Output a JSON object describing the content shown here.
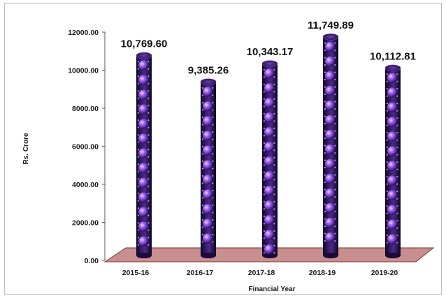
{
  "chart_data": {
    "type": "bar",
    "title": "",
    "xlabel": "Financial Year",
    "ylabel": "Rs. Crore",
    "categories": [
      "2015-16",
      "2016-17",
      "2017-18",
      "2018-19",
      "2019-20"
    ],
    "values": [
      10769.6,
      9385.26,
      10343.17,
      11749.89,
      10112.81
    ],
    "data_labels": [
      "10,769.60",
      "9,385.26",
      "10,343.17",
      "11,749.89",
      "10,112.81"
    ],
    "ylim": [
      0,
      12000
    ],
    "yticks": [
      "0.00",
      "2000.00",
      "4000.00",
      "6000.00",
      "8000.00",
      "10000.00",
      "12000.00"
    ],
    "grid": false,
    "legend": "none",
    "colors": {
      "bar_dark": "#1a0b38",
      "bar_mid": "#3a1e6e",
      "sphere": "#9b5cf0",
      "sphere_highlight": "#e6d0ff",
      "floor": "#c98f8f",
      "floor_edge": "#6e3b3b"
    }
  }
}
